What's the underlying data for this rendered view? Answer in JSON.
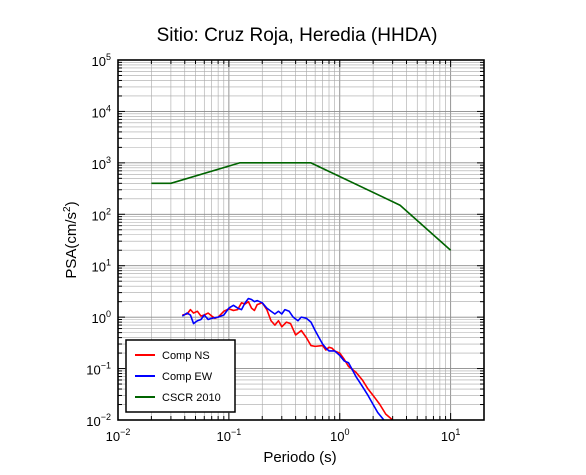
{
  "chart_data": {
    "type": "line",
    "title": "Sitio: Cruz Roja, Heredia (HHDA)",
    "xlabel": "Periodo (s)",
    "ylabel": "PSA(cm/s",
    "ylabel_sup": "2",
    "ylabel_end": ")",
    "x_scale": "log",
    "y_scale": "log",
    "xlim": [
      0.01,
      20
    ],
    "ylim": [
      0.01,
      100000
    ],
    "grid": true,
    "legend_position": "bottom-left",
    "x_ticks": [
      {
        "value": 0.01,
        "base": "10",
        "exp": "−2"
      },
      {
        "value": 0.1,
        "base": "10",
        "exp": "−1"
      },
      {
        "value": 1,
        "base": "10",
        "exp": "0"
      },
      {
        "value": 10,
        "base": "10",
        "exp": "1"
      }
    ],
    "y_ticks": [
      {
        "value": 0.01,
        "base": "10",
        "exp": "−2"
      },
      {
        "value": 0.1,
        "base": "10",
        "exp": "−1"
      },
      {
        "value": 1,
        "base": "10",
        "exp": "0"
      },
      {
        "value": 10,
        "base": "10",
        "exp": "1"
      },
      {
        "value": 100,
        "base": "10",
        "exp": "2"
      },
      {
        "value": 1000,
        "base": "10",
        "exp": "3"
      },
      {
        "value": 10000,
        "base": "10",
        "exp": "4"
      },
      {
        "value": 100000,
        "base": "10",
        "exp": "5"
      }
    ],
    "series": [
      {
        "name": "Comp NS",
        "color": "#ff0000",
        "points": [
          [
            0.038,
            1.1
          ],
          [
            0.042,
            1.15
          ],
          [
            0.045,
            1.4
          ],
          [
            0.048,
            1.2
          ],
          [
            0.052,
            1.3
          ],
          [
            0.056,
            1.05
          ],
          [
            0.06,
            1.1
          ],
          [
            0.065,
            1.2
          ],
          [
            0.07,
            1.05
          ],
          [
            0.075,
            0.95
          ],
          [
            0.08,
            1.0
          ],
          [
            0.09,
            1.3
          ],
          [
            0.1,
            1.45
          ],
          [
            0.11,
            1.35
          ],
          [
            0.12,
            1.4
          ],
          [
            0.13,
            1.9
          ],
          [
            0.14,
            1.8
          ],
          [
            0.15,
            2.0
          ],
          [
            0.16,
            1.5
          ],
          [
            0.17,
            1.35
          ],
          [
            0.18,
            1.75
          ],
          [
            0.2,
            1.9
          ],
          [
            0.22,
            1.4
          ],
          [
            0.24,
            0.85
          ],
          [
            0.26,
            0.7
          ],
          [
            0.28,
            0.85
          ],
          [
            0.3,
            0.65
          ],
          [
            0.33,
            0.8
          ],
          [
            0.36,
            0.75
          ],
          [
            0.4,
            0.45
          ],
          [
            0.45,
            0.55
          ],
          [
            0.5,
            0.4
          ],
          [
            0.55,
            0.28
          ],
          [
            0.6,
            0.27
          ],
          [
            0.7,
            0.28
          ],
          [
            0.75,
            0.23
          ],
          [
            0.8,
            0.26
          ],
          [
            0.85,
            0.25
          ],
          [
            0.9,
            0.22
          ],
          [
            1.0,
            0.2
          ],
          [
            1.1,
            0.15
          ],
          [
            1.2,
            0.11
          ],
          [
            1.4,
            0.085
          ],
          [
            1.6,
            0.06
          ],
          [
            1.8,
            0.04
          ],
          [
            2.0,
            0.03
          ],
          [
            2.3,
            0.02
          ],
          [
            2.6,
            0.013
          ],
          [
            3.0,
            0.01
          ]
        ]
      },
      {
        "name": "Comp EW",
        "color": "#0000ff",
        "points": [
          [
            0.038,
            1.05
          ],
          [
            0.042,
            1.2
          ],
          [
            0.045,
            1.1
          ],
          [
            0.048,
            0.75
          ],
          [
            0.052,
            0.85
          ],
          [
            0.056,
            0.9
          ],
          [
            0.06,
            1.1
          ],
          [
            0.065,
            0.9
          ],
          [
            0.07,
            0.95
          ],
          [
            0.08,
            1.0
          ],
          [
            0.09,
            1.1
          ],
          [
            0.1,
            1.5
          ],
          [
            0.11,
            1.7
          ],
          [
            0.12,
            1.5
          ],
          [
            0.13,
            1.4
          ],
          [
            0.14,
            1.9
          ],
          [
            0.15,
            2.3
          ],
          [
            0.16,
            2.2
          ],
          [
            0.17,
            2.0
          ],
          [
            0.18,
            2.1
          ],
          [
            0.2,
            1.9
          ],
          [
            0.22,
            1.5
          ],
          [
            0.24,
            1.3
          ],
          [
            0.26,
            1.15
          ],
          [
            0.28,
            1.3
          ],
          [
            0.3,
            1.15
          ],
          [
            0.32,
            1.4
          ],
          [
            0.35,
            1.3
          ],
          [
            0.38,
            1.0
          ],
          [
            0.42,
            0.85
          ],
          [
            0.45,
            1.0
          ],
          [
            0.5,
            0.95
          ],
          [
            0.55,
            0.8
          ],
          [
            0.6,
            0.55
          ],
          [
            0.65,
            0.4
          ],
          [
            0.7,
            0.3
          ],
          [
            0.75,
            0.25
          ],
          [
            0.8,
            0.22
          ],
          [
            0.9,
            0.22
          ],
          [
            1.0,
            0.18
          ],
          [
            1.1,
            0.14
          ],
          [
            1.2,
            0.13
          ],
          [
            1.4,
            0.07
          ],
          [
            1.6,
            0.045
          ],
          [
            1.8,
            0.03
          ],
          [
            2.0,
            0.02
          ],
          [
            2.2,
            0.014
          ],
          [
            2.5,
            0.01
          ]
        ]
      },
      {
        "name": "CSCR 2010",
        "color": "#006400",
        "points": [
          [
            0.02,
            400
          ],
          [
            0.03,
            400
          ],
          [
            0.125,
            1000
          ],
          [
            0.55,
            1000
          ],
          [
            3.5,
            150
          ],
          [
            10,
            20
          ]
        ]
      }
    ]
  }
}
